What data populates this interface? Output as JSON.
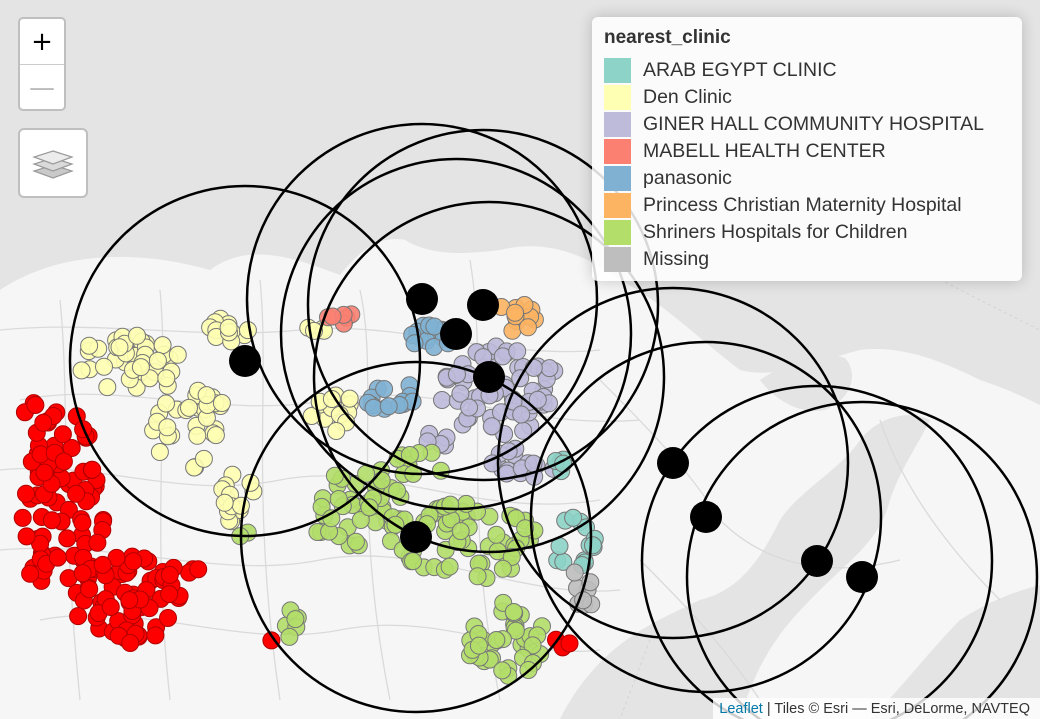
{
  "zoom": {
    "in_label": "+",
    "out_label": "—"
  },
  "layers_icon": "layers-icon",
  "legend": {
    "title": "nearest_clinic",
    "items": [
      {
        "label": "ARAB EGYPT CLINIC",
        "color": "#8DD3C7"
      },
      {
        "label": "Den Clinic",
        "color": "#FFFFB3"
      },
      {
        "label": "GINER HALL COMMUNITY HOSPITAL",
        "color": "#BEBADA"
      },
      {
        "label": "MABELL HEALTH CENTER",
        "color": "#FB8072"
      },
      {
        "label": "panasonic",
        "color": "#80B1D3"
      },
      {
        "label": "Princess Christian Maternity Hospital",
        "color": "#FDB462"
      },
      {
        "label": "Shriners Hospitals for Children",
        "color": "#B3DE69"
      },
      {
        "label": "Missing",
        "color": "#BEBEBE"
      }
    ]
  },
  "unassigned_color": "#FF0000",
  "clinic_marker_color": "#000000",
  "attribution": {
    "link_text": "Leaflet",
    "separator": " | ",
    "tiles_text": "Tiles © Esri — Esri, DeLorme, NAVTEQ"
  }
}
